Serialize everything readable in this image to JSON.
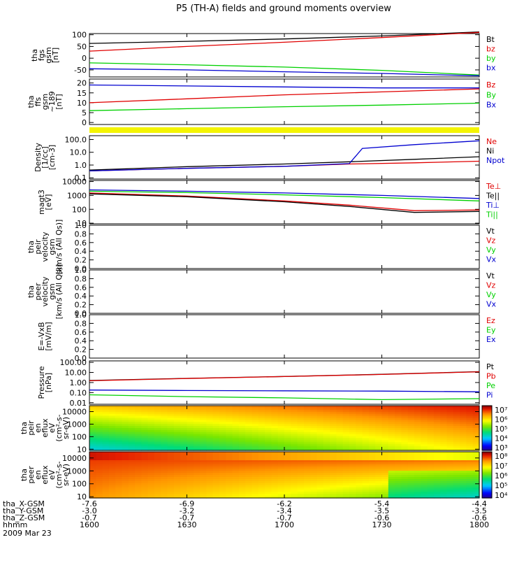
{
  "title": "P5 (TH-A) fields and ground moments overview",
  "time_axis": {
    "label": "hhmm",
    "date": "2009 Mar 23",
    "ticks": [
      "1600",
      "1630",
      "1700",
      "1730",
      "1800"
    ],
    "positions": [
      {
        "label": "tha_X-GSM",
        "values": [
          "-7.6",
          "-6.9",
          "-6.2",
          "-5.4",
          "-4.4"
        ]
      },
      {
        "label": "tha_Y-GSM",
        "values": [
          "-3.0",
          "-3.2",
          "-3.4",
          "-3.5",
          "-3.5"
        ]
      },
      {
        "label": "tha_Z-GSM",
        "values": [
          "-0.7",
          "-0.7",
          "-0.7",
          "-0.6",
          "-0.6"
        ]
      }
    ]
  },
  "colors": {
    "black": "#000000",
    "red": "#e00000",
    "green": "#00d000",
    "blue": "#0000d0"
  },
  "chart_data": [
    {
      "type": "line",
      "ylabel": "tha\nfgs\ngsm\n[nT]",
      "yticks": [
        "100",
        "50",
        "0",
        "-50"
      ],
      "ylim": [
        -80,
        105
      ],
      "legend": [
        "Bt",
        "bz",
        "by",
        "bx"
      ],
      "series": [
        {
          "name": "Bt",
          "x": [
            "1600",
            "1630",
            "1700",
            "1730",
            "1800"
          ],
          "values": [
            63,
            72,
            82,
            95,
            112
          ]
        },
        {
          "name": "bz",
          "x": [
            "1600",
            "1630",
            "1700",
            "1730",
            "1800"
          ],
          "values": [
            30,
            50,
            68,
            88,
            110
          ]
        },
        {
          "name": "by",
          "x": [
            "1600",
            "1630",
            "1700",
            "1730",
            "1800"
          ],
          "values": [
            -20,
            -28,
            -38,
            -52,
            -72
          ]
        },
        {
          "name": "bx",
          "x": [
            "1600",
            "1630",
            "1700",
            "1730",
            "1800"
          ],
          "values": [
            -45,
            -50,
            -58,
            -65,
            -75
          ]
        }
      ]
    },
    {
      "type": "line",
      "ylabel": "tha\nffs\ngsm\n~189\n[nT]",
      "yticks": [
        "20",
        "15",
        "10",
        "5",
        "0"
      ],
      "ylim": [
        -1,
        22
      ],
      "legend": [
        "Bz",
        "By",
        "Bx"
      ],
      "series": [
        {
          "name": "Bz",
          "x": [
            "1600",
            "1630",
            "1700",
            "1730",
            "1800"
          ],
          "values": [
            10,
            12,
            14,
            15.5,
            17
          ]
        },
        {
          "name": "By",
          "x": [
            "1600",
            "1630",
            "1700",
            "1730",
            "1800"
          ],
          "values": [
            6,
            7,
            8,
            8.8,
            9.8
          ]
        },
        {
          "name": "Bx",
          "x": [
            "1600",
            "1630",
            "1700",
            "1730",
            "1800"
          ],
          "values": [
            19,
            18.5,
            18,
            17.5,
            17.5
          ]
        }
      ]
    },
    {
      "type": "line",
      "ylabel": "Density\n[1/cc]\n[cm-3]",
      "yticks": [
        "100.0",
        "10.0",
        "1.0",
        "0.1"
      ],
      "ylim": [
        0.08,
        200
      ],
      "scale": "log",
      "legend": [
        "Ne",
        "Ni",
        "Npot"
      ],
      "series": [
        {
          "name": "Ne",
          "x": [
            "1600",
            "1630",
            "1700",
            "1720",
            "1740",
            "1800"
          ],
          "values": [
            0.35,
            0.55,
            0.8,
            1.2,
            1.5,
            2.0
          ]
        },
        {
          "name": "Ni",
          "x": [
            "1600",
            "1630",
            "1700",
            "1720",
            "1740",
            "1800"
          ],
          "values": [
            0.4,
            0.75,
            1.2,
            1.8,
            2.8,
            4.5
          ]
        },
        {
          "name": "Npot",
          "x": [
            "1600",
            "1630",
            "1700",
            "1720",
            "1724",
            "1740",
            "1800"
          ],
          "values": [
            0.35,
            0.55,
            0.8,
            1.3,
            20,
            40,
            80
          ]
        }
      ]
    },
    {
      "type": "line",
      "ylabel": "magt3\n[eV]",
      "yticks": [
        "10000",
        "1000",
        "100",
        "10"
      ],
      "ylim": [
        9,
        12000
      ],
      "scale": "log",
      "legend": [
        "Te⊥",
        "Te||",
        "Ti⊥",
        "Ti||"
      ],
      "series": [
        {
          "name": "Te⊥",
          "x": [
            "1600",
            "1630",
            "1700",
            "1720",
            "1740",
            "1800"
          ],
          "values": [
            1500,
            900,
            400,
            200,
            80,
            90
          ]
        },
        {
          "name": "Te||",
          "x": [
            "1600",
            "1630",
            "1700",
            "1720",
            "1740",
            "1800"
          ],
          "values": [
            1300,
            800,
            350,
            160,
            60,
            70
          ]
        },
        {
          "name": "Ti⊥",
          "x": [
            "1600",
            "1630",
            "1700",
            "1730",
            "1800"
          ],
          "values": [
            2500,
            2000,
            1500,
            1000,
            600
          ]
        },
        {
          "name": "Ti||",
          "x": [
            "1600",
            "1630",
            "1700",
            "1730",
            "1800"
          ],
          "values": [
            2000,
            1600,
            1100,
            700,
            400
          ]
        }
      ]
    },
    {
      "type": "line",
      "ylabel": "tha\npeir\nvelocity\ngsm\n[km/s (All Qs)]",
      "yticks": [
        "1.0",
        "0.8",
        "0.6",
        "0.4",
        "0.2",
        "0.0"
      ],
      "ylim": [
        0,
        1
      ],
      "legend": [
        "Vt",
        "Vz",
        "Vy",
        "Vx"
      ],
      "series": []
    },
    {
      "type": "line",
      "ylabel": "tha\npeer\nvelocity\ngsm\n[km/s (All Qs)]",
      "yticks": [
        "1.0",
        "0.8",
        "0.6",
        "0.4",
        "0.2",
        "0.0"
      ],
      "ylim": [
        0,
        1
      ],
      "legend": [
        "Vt",
        "Vz",
        "Vy",
        "Vx"
      ],
      "series": []
    },
    {
      "type": "line",
      "ylabel": "E=-VxB\n[mV/m]",
      "yticks": [
        "1.0",
        "0.8",
        "0.6",
        "0.4",
        "0.2",
        "0.0"
      ],
      "ylim": [
        0,
        1
      ],
      "legend": [
        "Ez",
        "Ey",
        "Ex"
      ],
      "series": []
    },
    {
      "type": "line",
      "ylabel": "Pressure\n[nPa]",
      "yticks": [
        "100.00",
        "10.00",
        "1.00",
        "0.10",
        "0.01"
      ],
      "ylim": [
        0.007,
        140
      ],
      "scale": "log",
      "legend": [
        "Pt",
        "Pb",
        "Pe",
        "Pi"
      ],
      "series": [
        {
          "name": "Pt",
          "x": [
            "1600",
            "1630",
            "1700",
            "1730",
            "1800"
          ],
          "values": [
            1.6,
            2.6,
            4.0,
            6.5,
            12
          ]
        },
        {
          "name": "Pb",
          "x": [
            "1600",
            "1630",
            "1700",
            "1730",
            "1800"
          ],
          "values": [
            1.5,
            2.5,
            3.9,
            6.3,
            11.5
          ]
        },
        {
          "name": "Pe",
          "x": [
            "1600",
            "1630",
            "1700",
            "1730",
            "1800"
          ],
          "values": [
            0.06,
            0.04,
            0.03,
            0.02,
            0.025
          ]
        },
        {
          "name": "Pi",
          "x": [
            "1600",
            "1630",
            "1700",
            "1730",
            "1800"
          ],
          "values": [
            0.18,
            0.16,
            0.15,
            0.14,
            0.12
          ]
        }
      ]
    },
    {
      "type": "heatmap",
      "ylabel": "tha\npeir\nen\neflux\neV\n(cm²-s-\nsr-eV)",
      "yticks": [
        "10000",
        "1000",
        "100",
        "10"
      ],
      "ylim": [
        8,
        30000
      ],
      "scale": "log",
      "colorbar_ticks": [
        "10⁷",
        "10⁶",
        "10⁵",
        "10⁴",
        "10³"
      ],
      "colorbar_range": [
        1000,
        10000000
      ]
    },
    {
      "type": "heatmap",
      "ylabel": "tha\npeer\nen\neflux\neV\n(cm²-s-\nsr-eV)",
      "yticks": [
        "10000",
        "1000",
        "100",
        "10"
      ],
      "ylim": [
        8,
        30000
      ],
      "scale": "log",
      "colorbar_ticks": [
        "10⁸",
        "10⁷",
        "10⁶",
        "10⁵",
        "10⁴"
      ],
      "colorbar_range": [
        10000,
        100000000
      ]
    }
  ]
}
